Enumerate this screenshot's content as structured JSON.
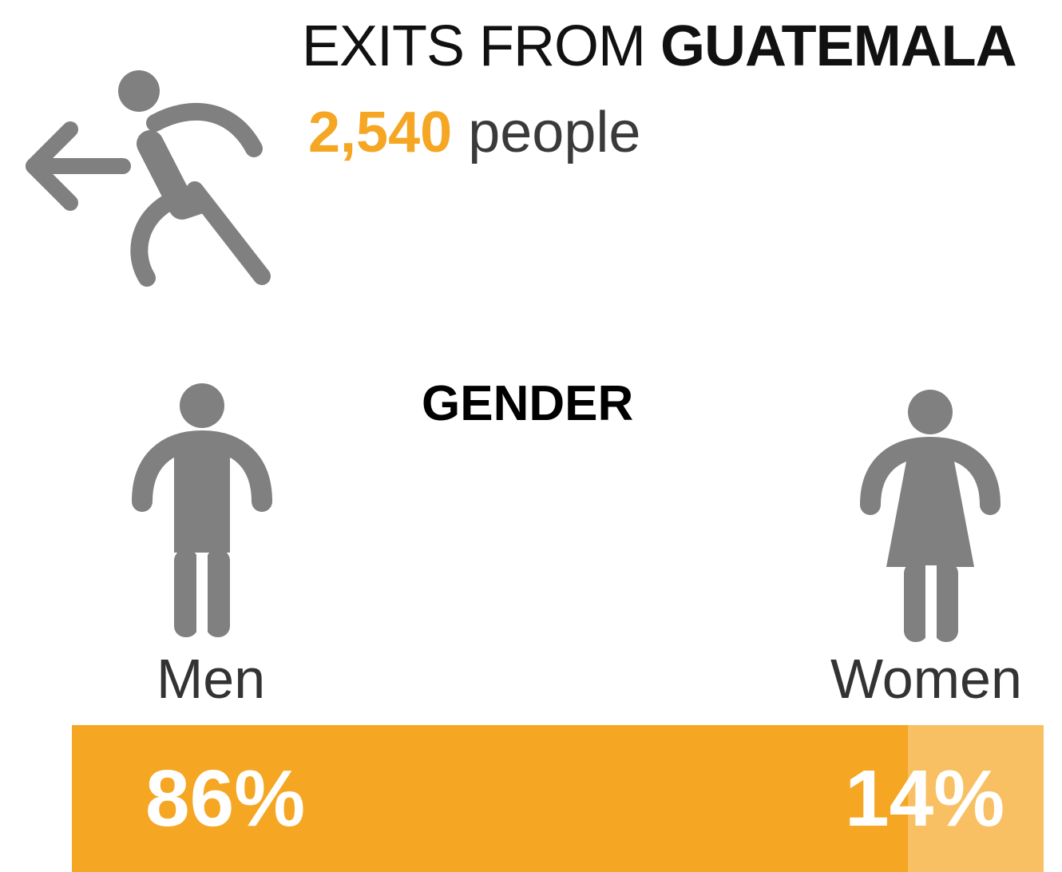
{
  "header": {
    "title_prefix": "EXITS FROM ",
    "title_country": "GUATEMALA",
    "count": "2,540",
    "count_unit": " people"
  },
  "gender": {
    "heading": "GENDER",
    "men": {
      "label": "Men",
      "percent_text": "86%",
      "share": 0.86
    },
    "women": {
      "label": "Women",
      "percent_text": "14%",
      "share": 0.14
    }
  },
  "colors": {
    "accent": "#f5a623",
    "accent_light": "#f8c062",
    "icon": "#808080",
    "text": "#333333"
  },
  "icons": {
    "exit": "walking-person-exit-icon",
    "men": "man-icon",
    "women": "woman-icon"
  }
}
